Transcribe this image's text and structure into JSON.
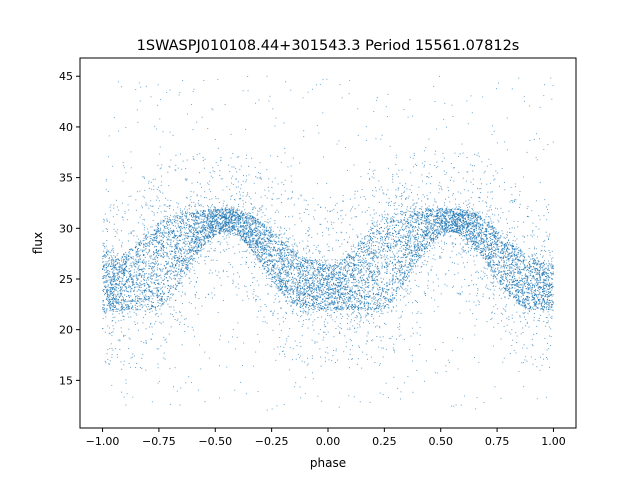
{
  "chart_data": {
    "type": "scatter",
    "title": "1SWASPJ010108.44+301543.3 Period 15561.07812s",
    "xlabel": "phase",
    "ylabel": "flux",
    "xlim": [
      -1.1,
      1.1
    ],
    "ylim": [
      10.3,
      46.8
    ],
    "xticks": [
      -1.0,
      -0.75,
      -0.5,
      -0.25,
      0.0,
      0.25,
      0.5,
      0.75,
      1.0
    ],
    "xtick_labels": [
      "−1.00",
      "−0.75",
      "−0.50",
      "−0.25",
      "0.00",
      "0.25",
      "0.50",
      "0.75",
      "1.00"
    ],
    "yticks": [
      15,
      20,
      25,
      30,
      35,
      40,
      45
    ],
    "ytick_labels": [
      "15",
      "20",
      "25",
      "30",
      "35",
      "40",
      "45"
    ],
    "grid": false,
    "legend": "none",
    "point_color": "#1f77b4",
    "series": [
      {
        "x": [
          -1.0,
          -0.95,
          -0.9,
          -0.85,
          -0.8,
          -0.75,
          -0.7,
          -0.65,
          -0.6,
          -0.55,
          -0.5,
          -0.45,
          -0.4,
          -0.35,
          -0.3,
          -0.25,
          -0.2,
          -0.15,
          -0.1,
          -0.05,
          0.0,
          0.05,
          0.1,
          0.15,
          0.2,
          0.25,
          0.3,
          0.35,
          0.4,
          0.45,
          0.5,
          0.55,
          0.6,
          0.65,
          0.7,
          0.75,
          0.8,
          0.85,
          0.9,
          0.95,
          1.0
        ],
        "band_low": [
          22.0,
          22.0,
          22.0,
          22.0,
          22.0,
          22.2,
          23.3,
          25.0,
          26.8,
          28.3,
          29.3,
          29.7,
          29.3,
          28.2,
          26.7,
          25.0,
          23.5,
          22.5,
          22.0,
          22.0,
          22.0,
          22.0,
          22.0,
          22.0,
          22.0,
          22.2,
          23.3,
          25.0,
          26.8,
          28.3,
          29.3,
          29.7,
          29.3,
          28.2,
          26.7,
          25.0,
          23.5,
          22.5,
          22.0,
          22.0,
          22.0
        ],
        "band_high": [
          28.6,
          26.8,
          27.3,
          28.4,
          29.6,
          30.5,
          31.0,
          31.4,
          31.6,
          31.8,
          31.9,
          31.9,
          31.8,
          31.4,
          30.7,
          29.7,
          28.6,
          27.7,
          27.0,
          26.6,
          26.3,
          26.5,
          27.5,
          28.8,
          30.0,
          30.8,
          31.3,
          31.6,
          31.8,
          31.9,
          31.9,
          31.9,
          31.8,
          31.5,
          30.8,
          29.8,
          28.7,
          27.8,
          27.1,
          26.6,
          26.3
        ],
        "scatter_range": [
          12.0,
          45.0
        ]
      }
    ]
  }
}
